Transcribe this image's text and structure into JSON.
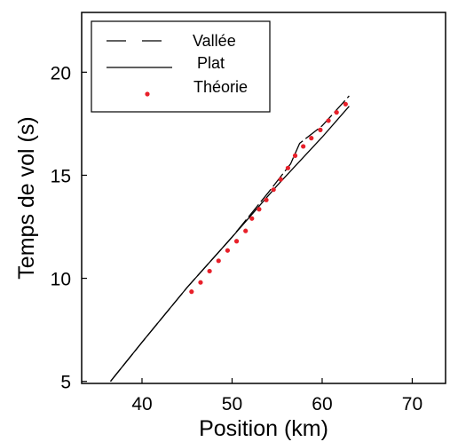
{
  "chart_data": {
    "type": "line",
    "title": "",
    "xlabel": "Position (km)",
    "ylabel": "Temps de vol (s)",
    "xlim": [
      33.3,
      73.7
    ],
    "ylim": [
      4.9,
      22.9
    ],
    "xticks": [
      40,
      50,
      60,
      70
    ],
    "yticks": [
      5,
      10,
      15,
      20
    ],
    "grid": false,
    "legend_position": "top-left",
    "series": [
      {
        "name": "Vallée",
        "style": "dashed",
        "color": "#000000",
        "points": [
          [
            36.5,
            5.0
          ],
          [
            40,
            6.9
          ],
          [
            45,
            9.55
          ],
          [
            50,
            12.0
          ],
          [
            54,
            14.15
          ],
          [
            56.5,
            15.55
          ],
          [
            57.5,
            16.55
          ],
          [
            60,
            17.4
          ],
          [
            63,
            18.85
          ]
        ]
      },
      {
        "name": "Plat",
        "style": "solid",
        "color": "#000000",
        "points": [
          [
            36.5,
            5.0
          ],
          [
            40,
            6.9
          ],
          [
            45,
            9.55
          ],
          [
            50,
            12.0
          ],
          [
            55,
            14.5
          ],
          [
            60,
            16.85
          ],
          [
            63,
            18.35
          ]
        ]
      },
      {
        "name": "Théorie",
        "style": "points",
        "color": "#e8202a",
        "points": [
          [
            45.5,
            9.35
          ],
          [
            46.5,
            9.8
          ],
          [
            47.5,
            10.35
          ],
          [
            48.5,
            10.85
          ],
          [
            49.5,
            11.35
          ],
          [
            50.5,
            11.8
          ],
          [
            51.5,
            12.3
          ],
          [
            52.2,
            12.9
          ],
          [
            53,
            13.35
          ],
          [
            53.8,
            13.8
          ],
          [
            54.6,
            14.3
          ],
          [
            55.4,
            14.8
          ],
          [
            56.2,
            15.35
          ],
          [
            57,
            15.95
          ],
          [
            57.9,
            16.4
          ],
          [
            58.8,
            16.8
          ],
          [
            59.8,
            17.2
          ],
          [
            60.7,
            17.65
          ],
          [
            61.6,
            18.05
          ],
          [
            62.6,
            18.45
          ]
        ]
      }
    ]
  }
}
